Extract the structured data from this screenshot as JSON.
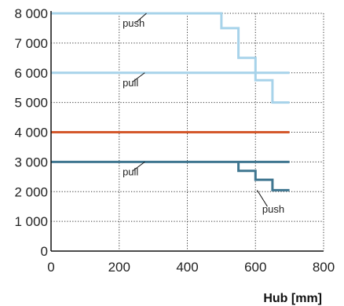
{
  "chart_data": {
    "type": "line",
    "title": "",
    "xlabel": "Hub [mm]",
    "ylabel": "",
    "xlim": [
      0,
      800
    ],
    "ylim": [
      0,
      8000
    ],
    "x_ticks": [
      {
        "value": 0,
        "label": "0"
      },
      {
        "value": 200,
        "label": "200"
      },
      {
        "value": 400,
        "label": "400"
      },
      {
        "value": 600,
        "label": "600"
      },
      {
        "value": 800,
        "label": "800"
      }
    ],
    "y_ticks": [
      {
        "value": 0,
        "label": "0"
      },
      {
        "value": 1000,
        "label": "1 000"
      },
      {
        "value": 2000,
        "label": "2 000"
      },
      {
        "value": 3000,
        "label": "3 000"
      },
      {
        "value": 4000,
        "label": "4 000"
      },
      {
        "value": 5000,
        "label": "5 000"
      },
      {
        "value": 6000,
        "label": "6 000"
      },
      {
        "value": 7000,
        "label": "7 000"
      },
      {
        "value": 8000,
        "label": "8 000"
      }
    ],
    "grid": {
      "x": true,
      "y": true,
      "style": "dotted"
    },
    "legend": "none",
    "series": [
      {
        "id": "light-push",
        "color": "#a7d3ea",
        "step": true,
        "points": [
          [
            0,
            8000
          ],
          [
            500,
            8000
          ],
          [
            500,
            7500
          ],
          [
            550,
            7500
          ],
          [
            550,
            6500
          ],
          [
            600,
            6500
          ],
          [
            600,
            5750
          ],
          [
            650,
            5750
          ],
          [
            650,
            5000
          ],
          [
            700,
            5000
          ]
        ]
      },
      {
        "id": "light-pull",
        "color": "#a7d3ea",
        "step": false,
        "points": [
          [
            0,
            6000
          ],
          [
            700,
            6000
          ]
        ]
      },
      {
        "id": "orange",
        "color": "#d4582b",
        "step": false,
        "points": [
          [
            0,
            4000
          ],
          [
            700,
            4000
          ]
        ]
      },
      {
        "id": "dark",
        "color": "#3f7690",
        "step": true,
        "points": [
          [
            0,
            3000
          ],
          [
            700,
            3000
          ]
        ]
      },
      {
        "id": "dark-push",
        "color": "#3f7690",
        "step": true,
        "points": [
          [
            550,
            3000
          ],
          [
            550,
            2700
          ],
          [
            600,
            2700
          ],
          [
            600,
            2400
          ],
          [
            650,
            2400
          ],
          [
            650,
            2050
          ],
          [
            700,
            2050
          ]
        ]
      }
    ],
    "annotations": [
      {
        "text": "push",
        "x": 210,
        "y": 7550,
        "line_from": [
          250,
          7700
        ],
        "line_to": [
          280,
          8000
        ]
      },
      {
        "text": "pull",
        "x": 210,
        "y": 5550,
        "line_from": [
          240,
          5700
        ],
        "line_to": [
          275,
          6000
        ]
      },
      {
        "text": "pull",
        "x": 210,
        "y": 2550,
        "line_from": [
          240,
          2700
        ],
        "line_to": [
          275,
          3000
        ]
      },
      {
        "text": "push",
        "x": 620,
        "y": 1300,
        "line_from": [
          635,
          1500
        ],
        "line_to": [
          605,
          2050
        ]
      }
    ]
  }
}
